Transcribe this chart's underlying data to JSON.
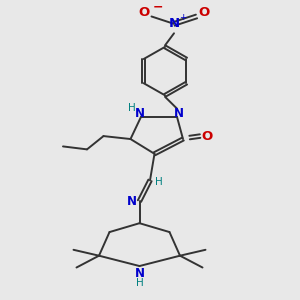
{
  "bg_color": "#e8e8e8",
  "bond_color": "#333333",
  "N_color": "#0000cc",
  "O_color": "#cc0000",
  "H_color": "#008080",
  "figsize": [
    3.0,
    3.0
  ],
  "dpi": 100,
  "xlim": [
    0,
    10
  ],
  "ylim": [
    0,
    10
  ]
}
